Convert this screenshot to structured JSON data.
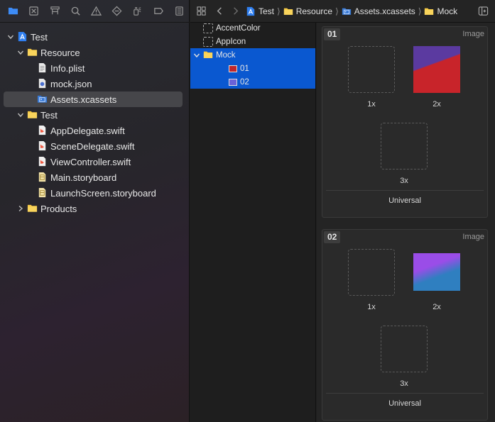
{
  "navigator": {
    "toolbar_icons": [
      "folder-icon",
      "source-control-icon",
      "hierarchy-icon",
      "search-icon",
      "issue-warning-icon",
      "test-diamond-icon",
      "debug-spray-icon",
      "breakpoint-icon",
      "report-icon"
    ],
    "accent": "#3d8bf5",
    "tree": [
      {
        "label": "Test",
        "level": 0,
        "kind": "project",
        "disclosure": "open"
      },
      {
        "label": "Resource",
        "level": 1,
        "kind": "folder",
        "disclosure": "open"
      },
      {
        "label": "Info.plist",
        "level": 2,
        "kind": "plist"
      },
      {
        "label": "mock.json",
        "level": 2,
        "kind": "json"
      },
      {
        "label": "Assets.xcassets",
        "level": 2,
        "kind": "assets",
        "selected": true
      },
      {
        "label": "Test",
        "level": 1,
        "kind": "folder",
        "disclosure": "open"
      },
      {
        "label": "AppDelegate.swift",
        "level": 2,
        "kind": "swift"
      },
      {
        "label": "SceneDelegate.swift",
        "level": 2,
        "kind": "swift"
      },
      {
        "label": "ViewController.swift",
        "level": 2,
        "kind": "swift"
      },
      {
        "label": "Main.storyboard",
        "level": 2,
        "kind": "storyboard"
      },
      {
        "label": "LaunchScreen.storyboard",
        "level": 2,
        "kind": "storyboard"
      },
      {
        "label": "Products",
        "level": 1,
        "kind": "folder",
        "disclosure": "closed"
      }
    ]
  },
  "jumpbar": {
    "crumbs": [
      {
        "label": "Test",
        "kind": "project"
      },
      {
        "label": "Resource",
        "kind": "folder"
      },
      {
        "label": "Assets.xcassets",
        "kind": "assets"
      },
      {
        "label": "Mock",
        "kind": "folder"
      }
    ]
  },
  "asset_list": [
    {
      "label": "AccentColor",
      "kind": "color",
      "level": 0
    },
    {
      "label": "AppIcon",
      "kind": "appicon",
      "level": 0
    },
    {
      "label": "Mock",
      "kind": "folder",
      "level": 0,
      "disclosure": "open",
      "selected": true
    },
    {
      "label": "01",
      "kind": "image",
      "level": 1,
      "selected": true,
      "swatch": "#c0272d"
    },
    {
      "label": "02",
      "kind": "image",
      "level": 1,
      "selected": true,
      "swatch": "#6a62d8"
    }
  ],
  "image_sets": [
    {
      "name": "01",
      "type": "Image",
      "slots": [
        {
          "label": "1x",
          "filled": false
        },
        {
          "label": "2x",
          "filled": true,
          "colors": [
            "#5b3aa0",
            "#c8242a"
          ]
        },
        {
          "label": "3x",
          "filled": false
        }
      ],
      "footer": "Universal"
    },
    {
      "name": "02",
      "type": "Image",
      "slots": [
        {
          "label": "1x",
          "filled": false
        },
        {
          "label": "2x",
          "filled": true,
          "colors": [
            "#9a4de8",
            "#2f7fc0"
          ]
        },
        {
          "label": "3x",
          "filled": false
        }
      ],
      "footer": "Universal"
    }
  ]
}
